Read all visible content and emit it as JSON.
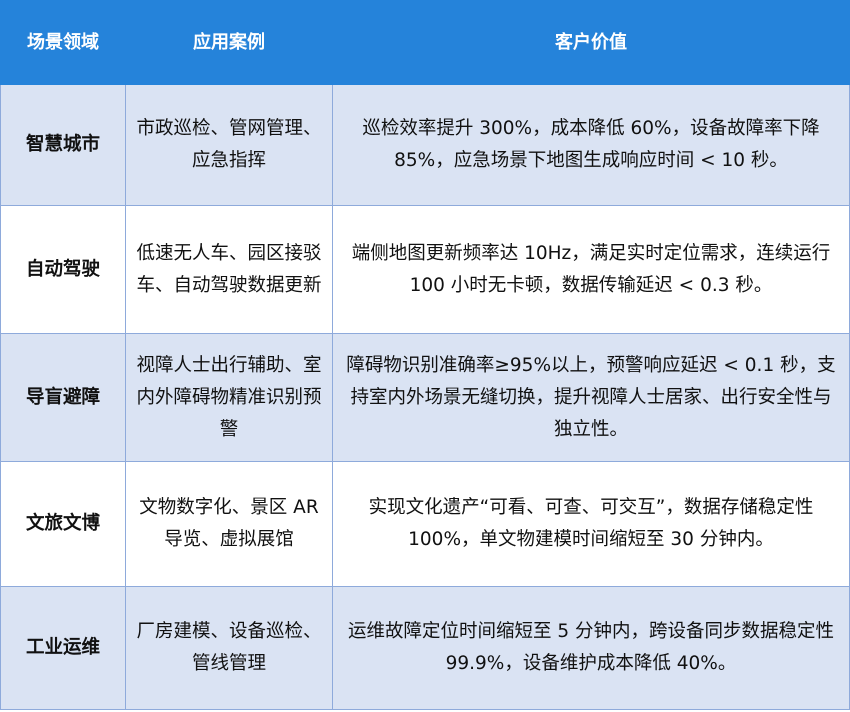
{
  "headers": [
    "场景领域",
    "应用案例",
    "客户价值"
  ],
  "rows": [
    {
      "area": "智慧城市",
      "cases": "市政巡检、管网管理、应急指挥",
      "value": "巡检效率提升 300%，成本降低 60%，设备故障率下降 85%，应急场景下地图生成响应时间 < 10 秒。"
    },
    {
      "area": "自动驾驶",
      "cases": "低速无人车、园区接驳车、自动驾驶数据更新",
      "value": "端侧地图更新频率达 10Hz，满足实时定位需求，连续运行 100 小时无卡顿，数据传输延迟 < 0.3 秒。"
    },
    {
      "area": "导盲避障",
      "cases": "视障人士出行辅助、室内外障碍物精准识别预警",
      "value": "障碍物识别准确率≥95%以上，预警响应延迟 < 0.1 秒，支持室内外场景无缝切换，提升视障人士居家、出行安全性与独立性。"
    },
    {
      "area": "文旅文博",
      "cases": "文物数字化、景区 AR 导览、虚拟展馆",
      "value": "实现文化遗产“可看、可查、可交互”，数据存储稳定性 100%，单文物建模时间缩短至 30 分钟内。"
    },
    {
      "area": "工业运维",
      "cases": "厂房建模、设备巡检、管线管理",
      "value": "运维故障定位时间缩短至 5 分钟内，跨设备同步数据稳定性 99.9%，设备维护成本降低 40%。"
    }
  ],
  "colors": {
    "header": "#2583da",
    "shade": "#dae3f3",
    "border": "#8eaadb"
  }
}
